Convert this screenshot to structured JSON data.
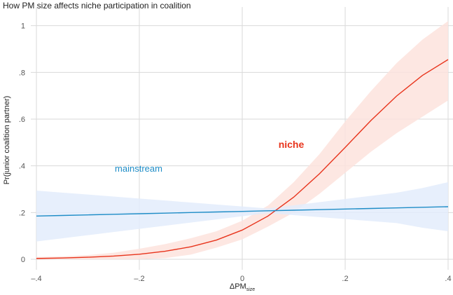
{
  "chart_data": {
    "type": "line",
    "title": "How PM size affects niche participation in coalition",
    "ylabel": "Pr(junior coalition partner)",
    "xlabel": "ΔPM",
    "xlabel_sub": "size",
    "x": [
      -0.4,
      -0.35,
      -0.3,
      -0.25,
      -0.2,
      -0.15,
      -0.1,
      -0.05,
      0,
      0.05,
      0.1,
      0.15,
      0.2,
      0.25,
      0.3,
      0.35,
      0.4
    ],
    "series": [
      {
        "name": "niche",
        "color": "#e8341c",
        "band_color": "#fde3dd",
        "values": [
          0.0034,
          0.0055,
          0.0087,
          0.0138,
          0.0217,
          0.0342,
          0.0534,
          0.0823,
          0.125,
          0.185,
          0.266,
          0.366,
          0.479,
          0.594,
          0.699,
          0.787,
          0.855
        ],
        "lower": [
          0,
          0,
          0,
          0,
          0,
          0.005,
          0.02,
          0.05,
          0.085,
          0.14,
          0.2,
          0.28,
          0.37,
          0.46,
          0.54,
          0.61,
          0.68
        ],
        "upper": [
          0.01,
          0.012,
          0.018,
          0.028,
          0.045,
          0.065,
          0.09,
          0.12,
          0.165,
          0.23,
          0.33,
          0.45,
          0.59,
          0.72,
          0.84,
          0.94,
          1.02
        ]
      },
      {
        "name": "mainstream",
        "color": "#1f8dc7",
        "band_color": "#e3ecfb",
        "values": [
          0.185,
          0.1875,
          0.19,
          0.1925,
          0.195,
          0.1975,
          0.2,
          0.2025,
          0.205,
          0.2075,
          0.21,
          0.2125,
          0.215,
          0.2175,
          0.22,
          0.2225,
          0.225
        ],
        "lower": [
          0.076,
          0.0895,
          0.103,
          0.1165,
          0.13,
          0.1435,
          0.157,
          0.1705,
          0.184,
          0.1975,
          0.189,
          0.1805,
          0.172,
          0.1635,
          0.155,
          0.135,
          0.12
        ],
        "upper": [
          0.294,
          0.2855,
          0.277,
          0.2685,
          0.26,
          0.2515,
          0.243,
          0.2345,
          0.226,
          0.2175,
          0.231,
          0.2445,
          0.258,
          0.2715,
          0.285,
          0.305,
          0.33
        ]
      }
    ],
    "xlim": [
      -0.4,
      0.4
    ],
    "ylim": [
      -0.045,
      1.08
    ],
    "xticks": [
      {
        "value": -0.4,
        "label": "–.4"
      },
      {
        "value": -0.2,
        "label": "–.2"
      },
      0,
      {
        "value": 0.2,
        "label": ".2"
      },
      {
        "value": 0.4,
        "label": ".4"
      }
    ],
    "yticks": [
      0,
      {
        "value": 0.2,
        "label": ".2"
      },
      {
        "value": 0.4,
        "label": ".4"
      },
      {
        "value": 0.6,
        "label": ".6"
      },
      {
        "value": 0.8,
        "label": ".8"
      },
      1
    ],
    "grid": true
  }
}
